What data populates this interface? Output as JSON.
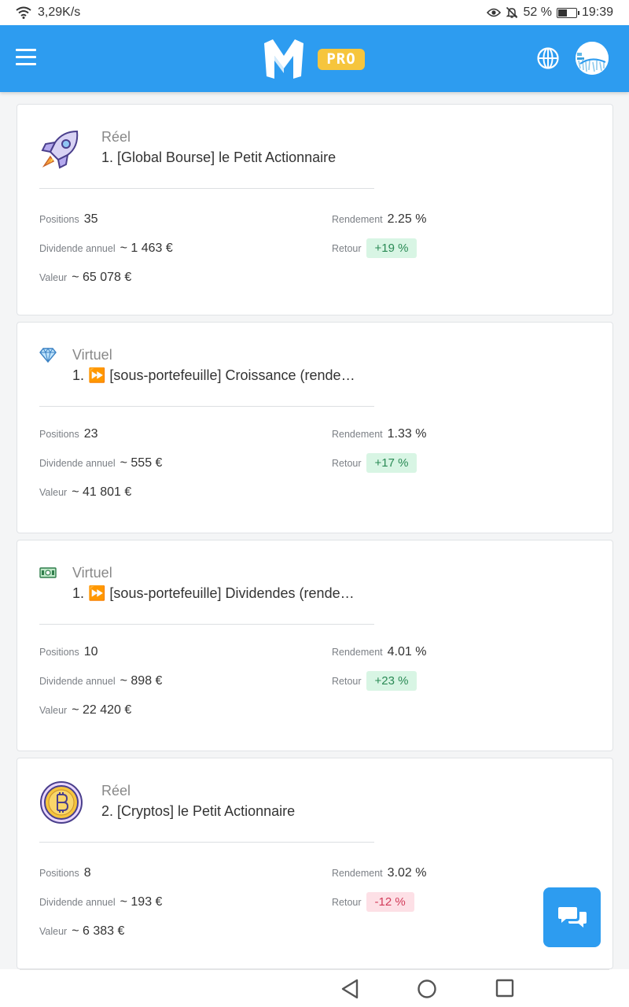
{
  "status_bar": {
    "network_speed": "3,29K/s",
    "battery_percent": "52 %",
    "battery_level": 0.52,
    "time": "19:39",
    "icons": [
      "wifi-icon",
      "eye-icon",
      "bell-off-icon",
      "battery-icon"
    ]
  },
  "app_bar": {
    "badge": "PRO",
    "icons": [
      "menu-icon",
      "logo-icon",
      "globe-icon",
      "avatar"
    ]
  },
  "labels": {
    "positions": "Positions",
    "dividend": "Dividende annuel",
    "value": "Valeur",
    "yield": "Rendement",
    "return": "Retour"
  },
  "portfolios": [
    {
      "icon": "rocket-icon",
      "type": "Réel",
      "title": "1. [Global Bourse] le Petit Actionnaire",
      "positions": "35",
      "dividend": "~ 1 463 €",
      "value": "~ 65 078 €",
      "yield": "2.25 %",
      "return": "+19 %",
      "return_sign": "positive"
    },
    {
      "icon": "diamond-icon",
      "type": "Virtuel",
      "title": "1. ⏩ [sous-portefeuille] Croissance (rende…",
      "positions": "23",
      "dividend": "~ 555 €",
      "value": "~ 41 801 €",
      "yield": "1.33 %",
      "return": "+17 %",
      "return_sign": "positive"
    },
    {
      "icon": "banknote-icon",
      "type": "Virtuel",
      "title": "1. ⏩ [sous-portefeuille] Dividendes (rende…",
      "positions": "10",
      "dividend": "~ 898 €",
      "value": "~ 22 420 €",
      "yield": "4.01 %",
      "return": "+23 %",
      "return_sign": "positive"
    },
    {
      "icon": "bitcoin-icon",
      "type": "Réel",
      "title": "2. [Cryptos] le Petit Actionnaire",
      "positions": "8",
      "dividend": "~ 193 €",
      "value": "~ 6 383 €",
      "yield": "3.02 %",
      "return": "-12 %",
      "return_sign": "negative"
    }
  ],
  "colors": {
    "primary": "#2d9cf0",
    "badge": "#f6c53d",
    "positive_bg": "#d8f5e4",
    "negative_bg": "#fde0e6"
  }
}
